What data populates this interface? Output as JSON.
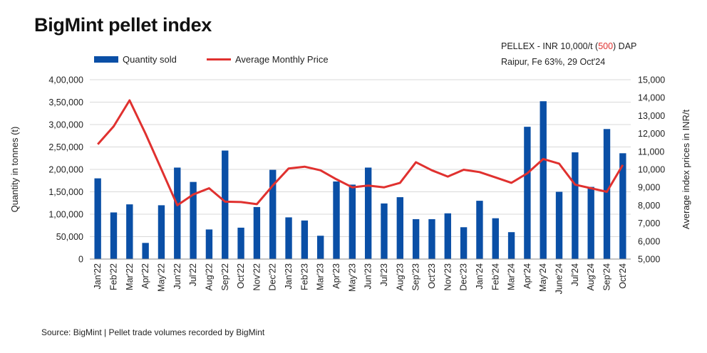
{
  "title": "BigMint pellet index",
  "note": {
    "line1_a": "PELLEX - INR 10,000/t (",
    "line1_b": "500",
    "line1_c": ") DAP",
    "line2": "Raipur, Fe 63%, 29 Oct'24"
  },
  "source": "Source: BigMint | Pellet trade volumes recorded by BigMint",
  "colors": {
    "bars": "#0a4fa6",
    "line": "#e0312f",
    "highlight": "#e0312f"
  },
  "chart_data": {
    "type": "bar+line",
    "categories": [
      "Jan'22",
      "Feb'22",
      "Mar'22",
      "Apr'22",
      "May'22",
      "Jun'22",
      "Jul'22",
      "Aug'22",
      "Sep'22",
      "Oct'22",
      "Nov'22",
      "Dec'22",
      "Jan'23",
      "Feb'23",
      "Mar'23",
      "Apr'23",
      "May'23",
      "Jun'23",
      "Jul'23",
      "Aug'23",
      "Sep'23",
      "Oct'23",
      "Nov'23",
      "Dec'23",
      "Jan'24",
      "Feb'24",
      "Mar'24",
      "Apr'24",
      "May'24",
      "June'24",
      "Jul'24",
      "Aug'24",
      "Sep'24",
      "Oct'24"
    ],
    "series": [
      {
        "name": "Quantity sold",
        "type": "bar",
        "axis": "left",
        "values": [
          180000,
          104000,
          122000,
          36000,
          120000,
          204000,
          172000,
          66000,
          242000,
          70000,
          116000,
          199000,
          93000,
          86000,
          52000,
          173000,
          166000,
          204000,
          124000,
          138000,
          89000,
          89000,
          102000,
          71000,
          130000,
          91000,
          60000,
          295000,
          352000,
          150000,
          238000,
          161000,
          290000,
          236000
        ]
      },
      {
        "name": "Average Monthly Price",
        "type": "line",
        "axis": "right",
        "values": [
          11400,
          12400,
          13850,
          12000,
          10000,
          8000,
          8600,
          8950,
          8200,
          8180,
          8060,
          9100,
          10050,
          10150,
          9950,
          9450,
          9000,
          9100,
          9000,
          9250,
          10400,
          9950,
          9600,
          9980,
          9850,
          9550,
          9250,
          9780,
          10580,
          10320,
          9150,
          8950,
          8750,
          10250
        ]
      }
    ],
    "y_left": {
      "label": "Quantity in tonnes (t)",
      "min": 0,
      "max": 400000,
      "ticks": [
        "0",
        "50,000",
        "1,00,000",
        "1,50,000",
        "2,00,000",
        "2,50,000",
        "3,00,000",
        "3,50,000",
        "4,00,000"
      ]
    },
    "y_right": {
      "label": "Average index prices in INR/t",
      "min": 5000,
      "max": 15000,
      "ticks": [
        "5,000",
        "6,000",
        "7,000",
        "8,000",
        "9,000",
        "10,000",
        "11,000",
        "12,000",
        "13,000",
        "14,000",
        "15,000"
      ]
    },
    "legend": {
      "position": "top-left"
    },
    "grid": true
  }
}
